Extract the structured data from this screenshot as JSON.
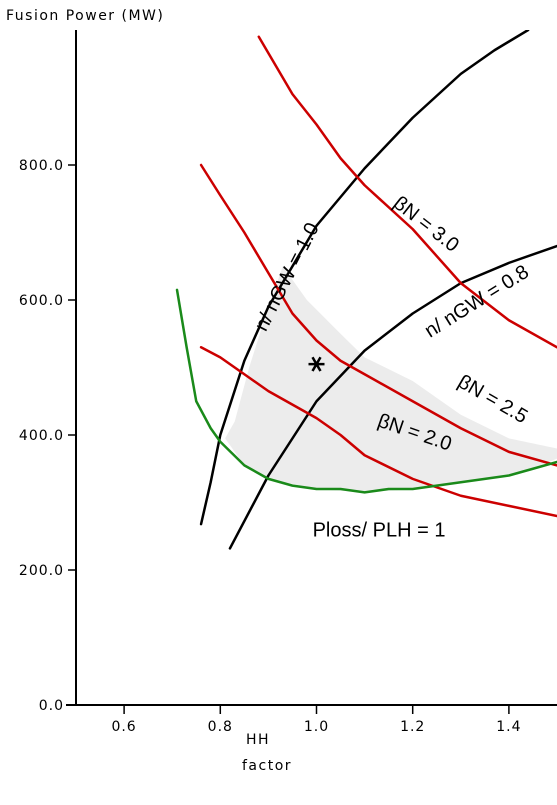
{
  "chart_data": {
    "type": "line",
    "title": "",
    "ylabel": "Fusion Power (MW)",
    "xlabel_line1": "HH",
    "xlabel_line2": "factor",
    "xlim": [
      0.5,
      1.5
    ],
    "ylim": [
      0,
      1000
    ],
    "xticks": [
      {
        "value": 0.6,
        "label": "0.6"
      },
      {
        "value": 0.8,
        "label": "0.8"
      },
      {
        "value": 1.0,
        "label": "1.0"
      },
      {
        "value": 1.2,
        "label": "1.2"
      },
      {
        "value": 1.4,
        "label": "1.4"
      }
    ],
    "yticks": [
      {
        "value": 0,
        "label": "0.0"
      },
      {
        "value": 200,
        "label": "200.0"
      },
      {
        "value": 400,
        "label": "400.0"
      },
      {
        "value": 600,
        "label": "600.0"
      },
      {
        "value": 800,
        "label": "800.0"
      }
    ],
    "grid": false,
    "colors": {
      "black": "#000000",
      "red": "#cc0000",
      "green": "#1a8a1a",
      "shade": "#ececec"
    },
    "series": [
      {
        "label": "n/ nGW = 1.0",
        "color": "black",
        "points": [
          [
            0.76,
            268
          ],
          [
            0.78,
            330
          ],
          [
            0.8,
            400
          ],
          [
            0.85,
            510
          ],
          [
            0.9,
            590
          ],
          [
            1.0,
            710
          ],
          [
            1.1,
            795
          ],
          [
            1.2,
            870
          ],
          [
            1.3,
            935
          ],
          [
            1.37,
            970
          ],
          [
            1.44,
            1000
          ]
        ]
      },
      {
        "label": "n/ nGW = 0.8",
        "color": "black",
        "points": [
          [
            0.82,
            232
          ],
          [
            0.9,
            340
          ],
          [
            1.0,
            450
          ],
          [
            1.1,
            525
          ],
          [
            1.2,
            580
          ],
          [
            1.3,
            625
          ],
          [
            1.4,
            655
          ],
          [
            1.5,
            680
          ]
        ]
      },
      {
        "label": "βN = 3.0",
        "color": "red",
        "points": [
          [
            0.88,
            990
          ],
          [
            0.95,
            905
          ],
          [
            1.0,
            860
          ],
          [
            1.05,
            810
          ],
          [
            1.1,
            770
          ],
          [
            1.2,
            705
          ],
          [
            1.3,
            625
          ],
          [
            1.4,
            570
          ],
          [
            1.5,
            530
          ]
        ]
      },
      {
        "label": "βN = 2.5",
        "color": "red",
        "points": [
          [
            0.76,
            800
          ],
          [
            0.8,
            755
          ],
          [
            0.85,
            700
          ],
          [
            0.9,
            640
          ],
          [
            0.95,
            580
          ],
          [
            1.0,
            540
          ],
          [
            1.05,
            510
          ],
          [
            1.1,
            490
          ],
          [
            1.2,
            450
          ],
          [
            1.3,
            410
          ],
          [
            1.4,
            375
          ],
          [
            1.5,
            355
          ]
        ]
      },
      {
        "label": "βN = 2.0",
        "color": "red",
        "points": [
          [
            0.76,
            530
          ],
          [
            0.8,
            515
          ],
          [
            0.85,
            490
          ],
          [
            0.9,
            465
          ],
          [
            0.95,
            445
          ],
          [
            1.0,
            425
          ],
          [
            1.05,
            400
          ],
          [
            1.1,
            370
          ],
          [
            1.2,
            335
          ],
          [
            1.3,
            310
          ],
          [
            1.4,
            295
          ],
          [
            1.5,
            280
          ]
        ]
      },
      {
        "label": "Ploss/ PLH = 1",
        "color": "green",
        "points": [
          [
            0.71,
            615
          ],
          [
            0.73,
            530
          ],
          [
            0.75,
            450
          ],
          [
            0.78,
            410
          ],
          [
            0.8,
            390
          ],
          [
            0.85,
            355
          ],
          [
            0.9,
            335
          ],
          [
            0.95,
            325
          ],
          [
            1.0,
            320
          ],
          [
            1.05,
            320
          ],
          [
            1.1,
            315
          ],
          [
            1.15,
            320
          ],
          [
            1.2,
            320
          ],
          [
            1.25,
            325
          ],
          [
            1.3,
            330
          ],
          [
            1.35,
            335
          ],
          [
            1.4,
            340
          ],
          [
            1.45,
            350
          ],
          [
            1.5,
            360
          ]
        ]
      }
    ],
    "shaded_region": [
      [
        0.81,
        395
      ],
      [
        0.83,
        420
      ],
      [
        0.86,
        500
      ],
      [
        0.9,
        590
      ],
      [
        0.93,
        650
      ],
      [
        0.98,
        600
      ],
      [
        1.05,
        550
      ],
      [
        1.1,
        515
      ],
      [
        1.2,
        480
      ],
      [
        1.3,
        430
      ],
      [
        1.4,
        395
      ],
      [
        1.5,
        380
      ],
      [
        1.5,
        365
      ],
      [
        1.45,
        350
      ],
      [
        1.4,
        340
      ],
      [
        1.3,
        330
      ],
      [
        1.2,
        320
      ],
      [
        1.1,
        315
      ],
      [
        1.0,
        320
      ],
      [
        0.9,
        335
      ],
      [
        0.85,
        355
      ]
    ],
    "marker": {
      "x": 1.0,
      "y": 505,
      "symbol": "*"
    },
    "annotations": [
      {
        "text": "n/ nGW = 1.0",
        "x": 0.95,
        "y": 630,
        "angle": -63
      },
      {
        "text": "n/ nGW = 0.8",
        "x": 1.34,
        "y": 590,
        "angle": -32
      },
      {
        "text": "βN = 3.0",
        "x": 1.22,
        "y": 705,
        "angle": 38
      },
      {
        "text": "βN = 2.5",
        "x": 1.36,
        "y": 445,
        "angle": 30
      },
      {
        "text": "βN = 2.0",
        "x": 1.2,
        "y": 395,
        "angle": 19
      },
      {
        "text": "Ploss/ PLH = 1",
        "x": 1.13,
        "y": 250,
        "angle": 0
      }
    ]
  }
}
